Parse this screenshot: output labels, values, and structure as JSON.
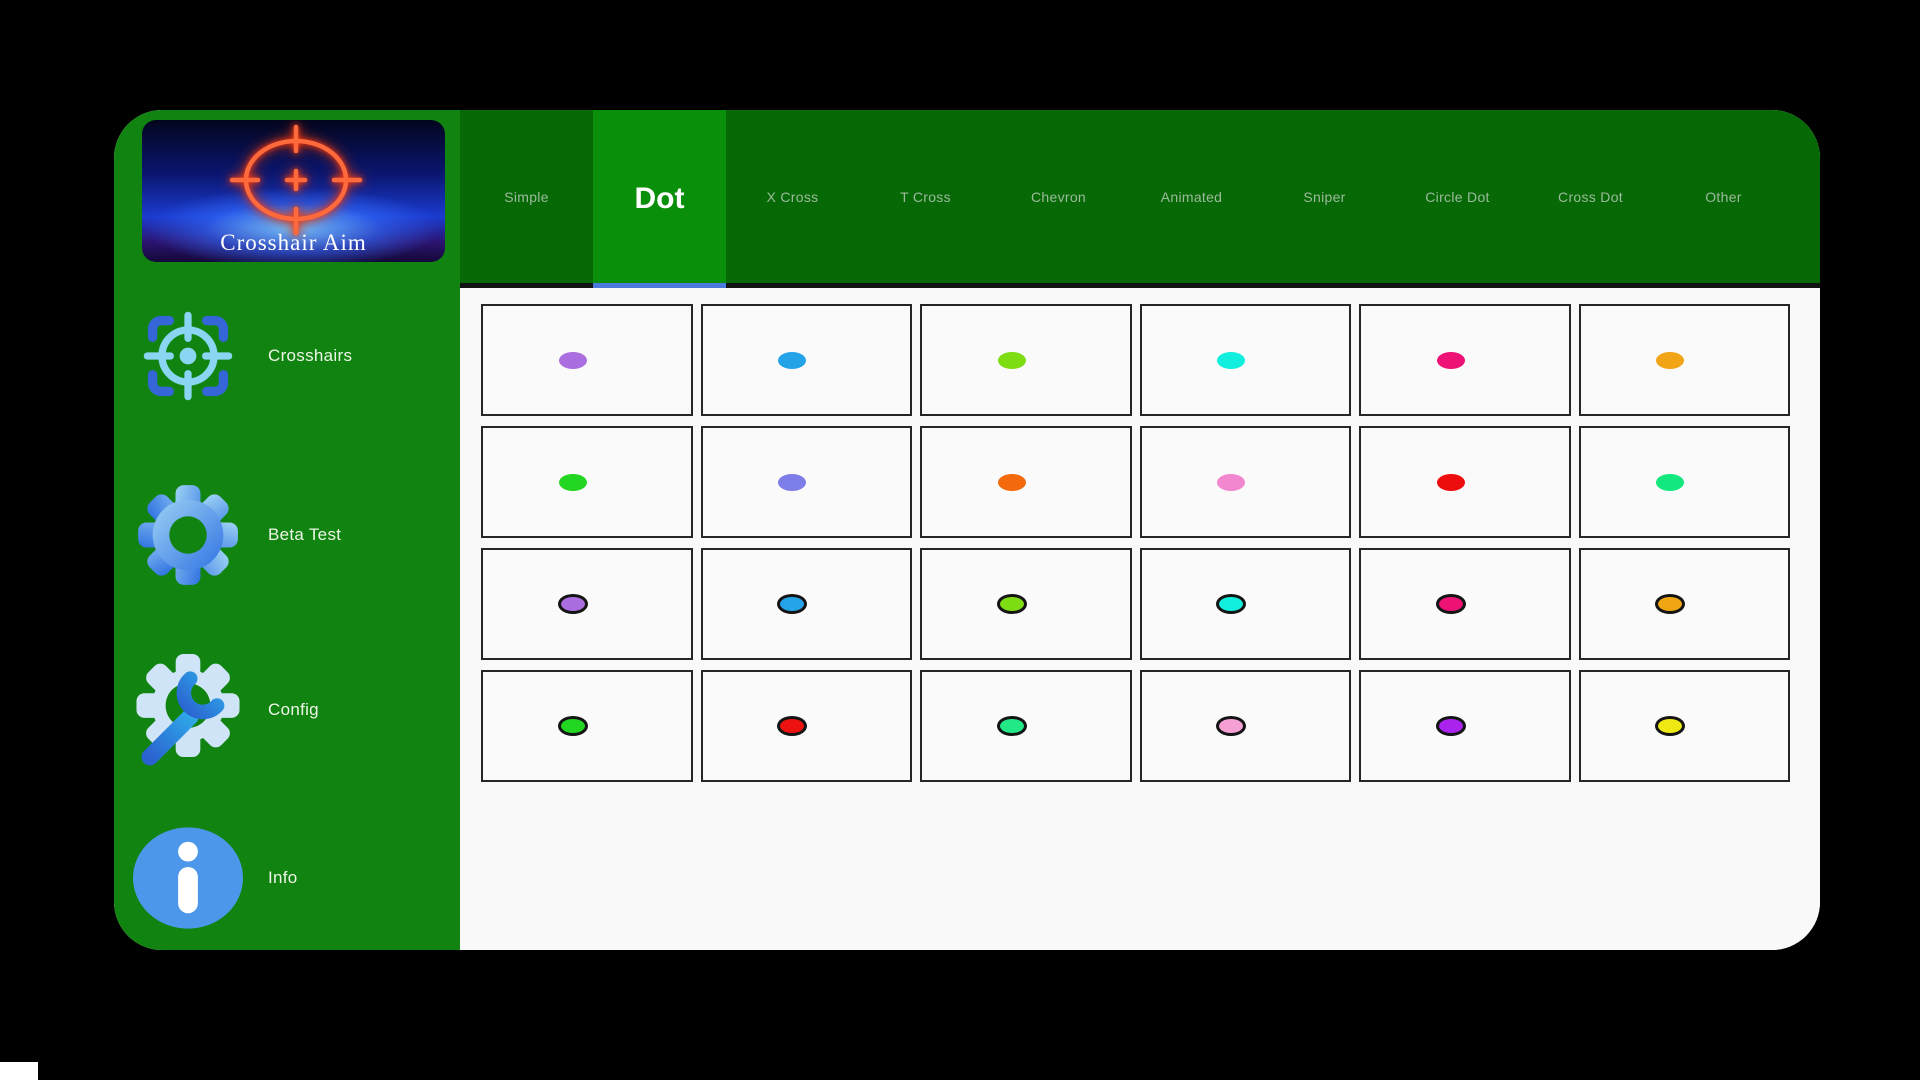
{
  "app": {
    "window_title": "Crosshair Aim"
  },
  "sidebar": {
    "logo_text": "Crosshair Aim",
    "items": [
      {
        "label": "Crosshairs",
        "icon": "crosshair-target-icon"
      },
      {
        "label": "Beta Test",
        "icon": "gear-icon"
      },
      {
        "label": "Config",
        "icon": "gear-wrench-icon"
      },
      {
        "label": "Info",
        "icon": "info-circle-icon"
      }
    ]
  },
  "tabs": [
    {
      "label": "Simple",
      "selected": false
    },
    {
      "label": "Dot",
      "selected": true
    },
    {
      "label": "X Cross",
      "selected": false
    },
    {
      "label": "T Cross",
      "selected": false
    },
    {
      "label": "Chevron",
      "selected": false
    },
    {
      "label": "Animated",
      "selected": false
    },
    {
      "label": "Sniper",
      "selected": false
    },
    {
      "label": "Circle Dot",
      "selected": false
    },
    {
      "label": "Cross Dot",
      "selected": false
    },
    {
      "label": "Other",
      "selected": false
    }
  ],
  "colors": {
    "sidebar_green": "#108310",
    "tabbar_green": "#066906",
    "selected_green": "#0a8f0a",
    "underline_blue": "#4b79dd",
    "content_bg": "#f9f9f9",
    "card_bg": "#fafafa",
    "card_border": "#262626",
    "tab_text": "#9cba9c",
    "logo_neon": "#ff5a35",
    "icon_blue": "#3f86e8"
  },
  "grid": {
    "rows": 4,
    "cols": 6,
    "cells": [
      {
        "color": "#ab6ee0",
        "outlined": false
      },
      {
        "color": "#25a3e8",
        "outlined": false
      },
      {
        "color": "#7edd12",
        "outlined": false
      },
      {
        "color": "#12eedd",
        "outlined": false
      },
      {
        "color": "#ee1277",
        "outlined": false
      },
      {
        "color": "#f2a417",
        "outlined": false
      },
      {
        "color": "#22d622",
        "outlined": false
      },
      {
        "color": "#7d7de8",
        "outlined": false
      },
      {
        "color": "#f26a0d",
        "outlined": false
      },
      {
        "color": "#f287d0",
        "outlined": false
      },
      {
        "color": "#ee0d0d",
        "outlined": false
      },
      {
        "color": "#12e87d",
        "outlined": false
      },
      {
        "color": "#ab6ee0",
        "outlined": true
      },
      {
        "color": "#25a3e8",
        "outlined": true
      },
      {
        "color": "#7edd12",
        "outlined": true
      },
      {
        "color": "#12eedd",
        "outlined": true
      },
      {
        "color": "#ee1277",
        "outlined": true
      },
      {
        "color": "#f0a612",
        "outlined": true
      },
      {
        "color": "#22d622",
        "outlined": true
      },
      {
        "color": "#ee1111",
        "outlined": true
      },
      {
        "color": "#22e887",
        "outlined": true
      },
      {
        "color": "#f4a0d4",
        "outlined": true
      },
      {
        "color": "#aa22ee",
        "outlined": true
      },
      {
        "color": "#efe812",
        "outlined": true
      }
    ]
  }
}
